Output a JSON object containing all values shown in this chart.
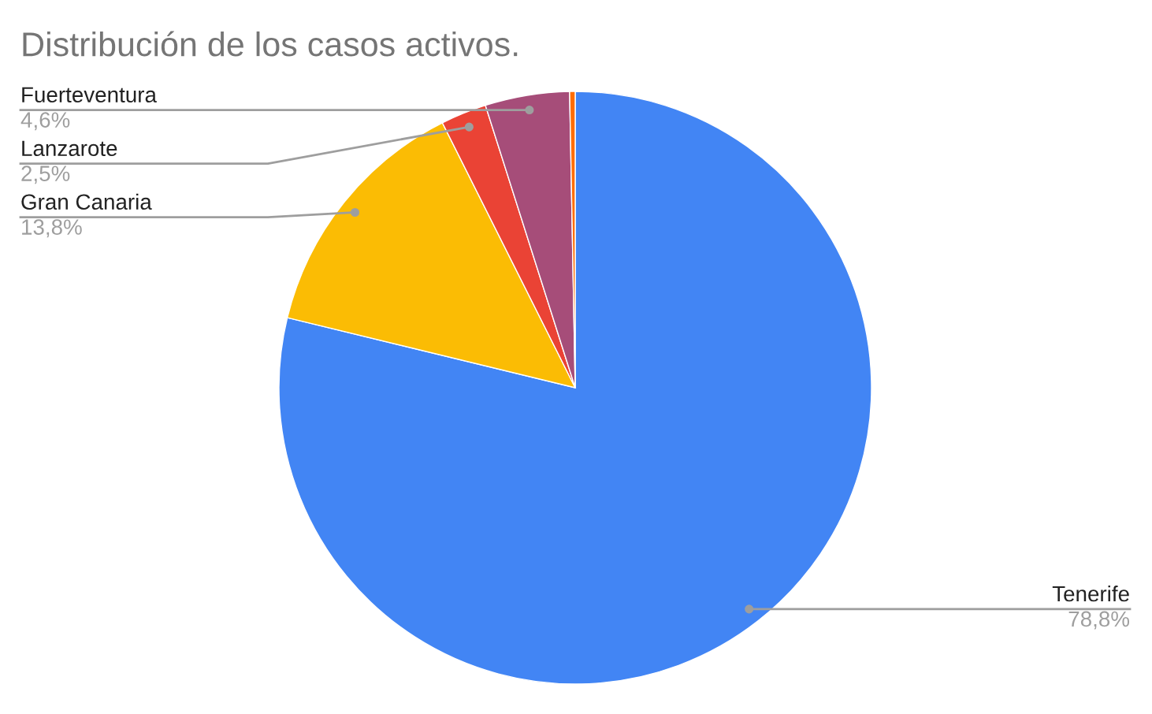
{
  "chart_data": {
    "type": "pie",
    "title": "Distribución de los casos activos.",
    "categories": [
      "Tenerife",
      "Gran Canaria",
      "Lanzarote",
      "Fuerteventura",
      null
    ],
    "values": [
      78.8,
      13.8,
      2.5,
      4.6,
      0.3
    ],
    "value_labels": [
      "78,8%",
      "13,8%",
      "2,5%",
      "4,6%",
      null
    ],
    "colors": [
      "#4285f4",
      "#fbbc04",
      "#ea4335",
      "#a64d79",
      "#ff6d01"
    ]
  }
}
